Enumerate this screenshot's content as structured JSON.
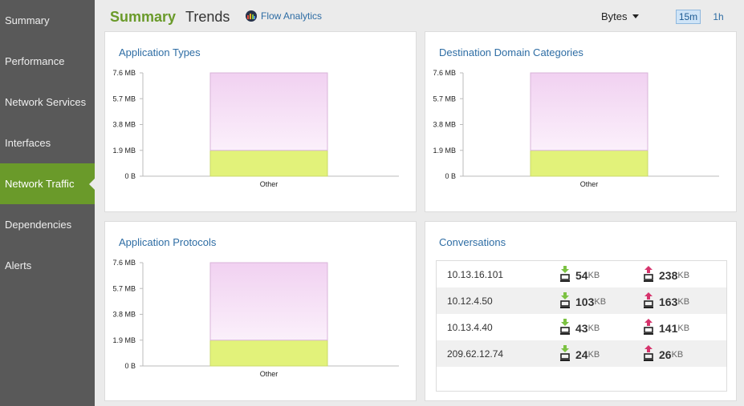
{
  "sidebar": {
    "items": [
      {
        "label": "Summary"
      },
      {
        "label": "Performance"
      },
      {
        "label": "Network Services"
      },
      {
        "label": "Interfaces"
      },
      {
        "label": "Network Traffic",
        "active": true
      },
      {
        "label": "Dependencies"
      },
      {
        "label": "Alerts"
      }
    ]
  },
  "header": {
    "tab_summary": "Summary",
    "tab_trends": "Trends",
    "flow_link": "Flow Analytics",
    "unit_select": "Bytes",
    "time_15m": "15m",
    "time_1h": "1h"
  },
  "colors": {
    "accent_green": "#6a9a2a",
    "link_blue": "#2e6da4",
    "bar_pink": "#f2d3f2",
    "bar_lime": "#e2f27a",
    "down_arrow": "#7cc242",
    "up_arrow": "#d6336c"
  },
  "panels": {
    "app_types": {
      "title": "Application Types"
    },
    "dest_domains": {
      "title": "Destination Domain Categories"
    },
    "app_protocols": {
      "title": "Application Protocols"
    },
    "conversations": {
      "title": "Conversations"
    }
  },
  "chart_data": [
    {
      "type": "bar",
      "title": "Application Types",
      "categories": [
        "Other"
      ],
      "series": [
        {
          "values": [
            1.9
          ]
        },
        {
          "values": [
            5.7
          ]
        }
      ],
      "stacked": true,
      "yticks": [
        "0 B",
        "1.9 MB",
        "3.8 MB",
        "5.7 MB",
        "7.6 MB"
      ],
      "ylim": [
        0,
        7.6
      ]
    },
    {
      "type": "bar",
      "title": "Destination Domain Categories",
      "categories": [
        "Other"
      ],
      "series": [
        {
          "values": [
            1.9
          ]
        },
        {
          "values": [
            5.7
          ]
        }
      ],
      "stacked": true,
      "yticks": [
        "0 B",
        "1.9 MB",
        "3.8 MB",
        "5.7 MB",
        "7.6 MB"
      ],
      "ylim": [
        0,
        7.6
      ]
    },
    {
      "type": "bar",
      "title": "Application Protocols",
      "categories": [
        "Other"
      ],
      "series": [
        {
          "values": [
            1.9
          ]
        },
        {
          "values": [
            5.7
          ]
        }
      ],
      "stacked": true,
      "yticks": [
        "0 B",
        "1.9 MB",
        "3.8 MB",
        "5.7 MB",
        "7.6 MB"
      ],
      "ylim": [
        0,
        7.6
      ]
    }
  ],
  "conversations": {
    "rows": [
      {
        "ip": "10.13.16.101",
        "down": "54",
        "down_unit": "KB",
        "up": "238",
        "up_unit": "KB"
      },
      {
        "ip": "10.12.4.50",
        "down": "103",
        "down_unit": "KB",
        "up": "163",
        "up_unit": "KB"
      },
      {
        "ip": "10.13.4.40",
        "down": "43",
        "down_unit": "KB",
        "up": "141",
        "up_unit": "KB"
      },
      {
        "ip": "209.62.12.74",
        "down": "24",
        "down_unit": "KB",
        "up": "26",
        "up_unit": "KB"
      }
    ],
    "icons": {
      "down": "download-computer-icon",
      "up": "upload-computer-icon"
    }
  }
}
